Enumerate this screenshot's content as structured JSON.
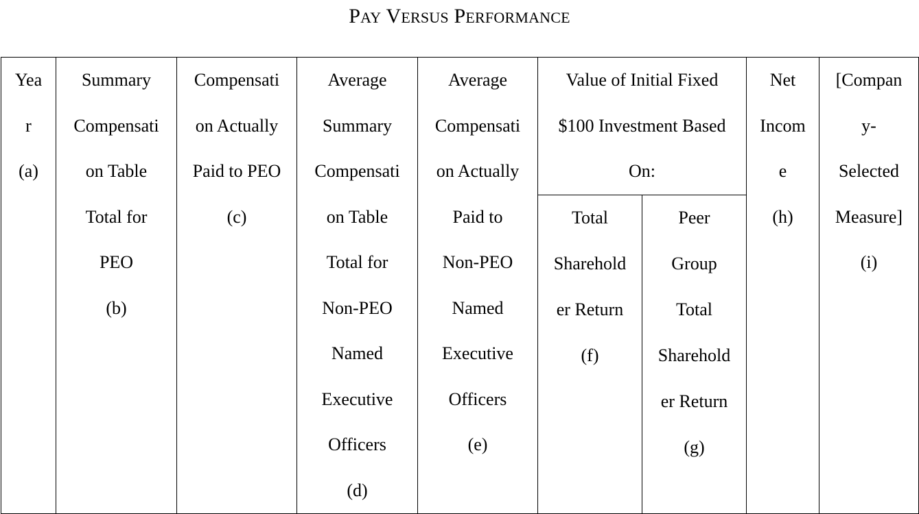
{
  "title": {
    "words": [
      {
        "first": "P",
        "rest": "AY"
      },
      {
        "first": "V",
        "rest": "ERSUS"
      },
      {
        "first": "P",
        "rest": "ERFORMANCE"
      }
    ]
  },
  "table": {
    "columns": {
      "a": [
        "Yea",
        "r",
        "(a)"
      ],
      "b": [
        "Summary",
        "Compensati",
        "on Table",
        "Total for",
        "PEO",
        "(b)"
      ],
      "c": [
        "Compensati",
        "on Actually",
        "Paid to PEO",
        "(c)"
      ],
      "d": [
        "Average",
        "Summary",
        "Compensati",
        "on Table",
        "Total for",
        "Non-PEO",
        "Named",
        "Executive",
        "Officers",
        "(d)"
      ],
      "e": [
        "Average",
        "Compensati",
        "on Actually",
        "Paid to",
        "Non-PEO",
        "Named",
        "Executive",
        "Officers",
        "(e)"
      ],
      "group": [
        "Value of Initial Fixed",
        "$100 Investment Based",
        "On:"
      ],
      "f": [
        "Total",
        "Sharehold",
        "er Return",
        "(f)"
      ],
      "g": [
        "Peer",
        "Group",
        "Total",
        "Sharehold",
        "er Return",
        "(g)"
      ],
      "h": [
        "Net",
        "Incom",
        "e",
        "(h)"
      ],
      "i": [
        "[Compan",
        "y-",
        "Selected",
        "Measure]",
        "(i)"
      ]
    }
  }
}
